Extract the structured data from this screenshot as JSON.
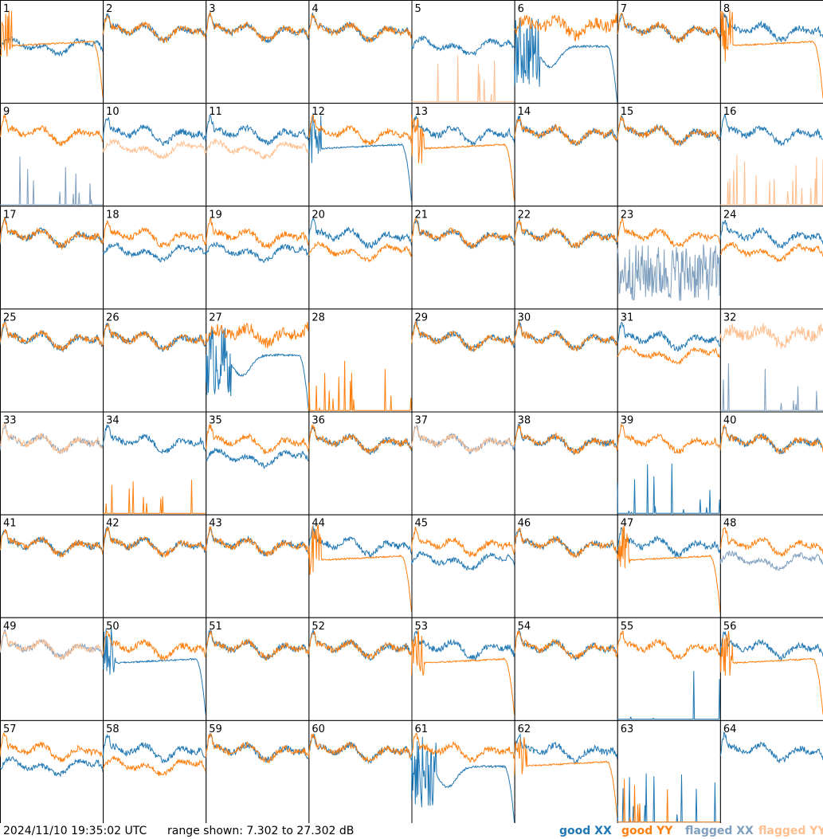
{
  "footer": {
    "timestamp": "2024/11/10 19:35:02 UTC",
    "range_text": "range shown: 7.302 to 27.302 dB"
  },
  "legend": [
    {
      "label": "good XX",
      "color": "#1f77b4"
    },
    {
      "label": "good YY",
      "color": "#ff7f0e"
    },
    {
      "label": "flagged XX",
      "color": "#7f9fbf"
    },
    {
      "label": "flagged YY",
      "color": "#ffbf8f"
    }
  ],
  "chart_data": {
    "type": "line",
    "layout": "small-multiples 8x8",
    "ylim": [
      7.302,
      27.302
    ],
    "yunit": "dB",
    "series_types": [
      "good XX",
      "good YY",
      "flagged XX",
      "flagged YY"
    ],
    "panels": [
      {
        "id": "1",
        "xx": "good",
        "yy": "good",
        "xx_shape": "bandpass_low",
        "yy_shape": "lowflat_drop"
      },
      {
        "id": "2",
        "xx": "good",
        "yy": "good",
        "xx_shape": "bandpass",
        "yy_shape": "bandpass"
      },
      {
        "id": "3",
        "xx": "good",
        "yy": "good",
        "xx_shape": "bandpass",
        "yy_shape": "bandpass"
      },
      {
        "id": "4",
        "xx": "good",
        "yy": "good",
        "xx_shape": "bandpass",
        "yy_shape": "bandpass"
      },
      {
        "id": "5",
        "xx": "good",
        "yy": "flagged",
        "xx_shape": "bandpass_low",
        "yy_shape": "spikes_low"
      },
      {
        "id": "6",
        "xx": "good",
        "yy": "good",
        "xx_shape": "deep_drop",
        "yy_shape": "noisy_high"
      },
      {
        "id": "7",
        "xx": "good",
        "yy": "good",
        "xx_shape": "bandpass",
        "yy_shape": "bandpass"
      },
      {
        "id": "8",
        "xx": "good",
        "yy": "good",
        "xx_shape": "bandpass",
        "yy_shape": "lowflat_drop"
      },
      {
        "id": "9",
        "xx": "flagged",
        "yy": "good",
        "xx_shape": "spikes_low",
        "yy_shape": "bandpass"
      },
      {
        "id": "10",
        "xx": "good",
        "yy": "flagged",
        "xx_shape": "bandpass",
        "yy_shape": "bandpass_low"
      },
      {
        "id": "11",
        "xx": "good",
        "yy": "flagged",
        "xx_shape": "bandpass",
        "yy_shape": "bandpass_low"
      },
      {
        "id": "12",
        "xx": "good",
        "yy": "good",
        "xx_shape": "lowflat_drop",
        "yy_shape": "bandpass"
      },
      {
        "id": "13",
        "xx": "good",
        "yy": "good",
        "xx_shape": "bandpass",
        "yy_shape": "lowflat_drop"
      },
      {
        "id": "14",
        "xx": "good",
        "yy": "good",
        "xx_shape": "bandpass",
        "yy_shape": "bandpass"
      },
      {
        "id": "15",
        "xx": "good",
        "yy": "good",
        "xx_shape": "bandpass",
        "yy_shape": "bandpass"
      },
      {
        "id": "16",
        "xx": "good",
        "yy": "flagged",
        "xx_shape": "bandpass",
        "yy_shape": "spikes_low"
      },
      {
        "id": "17",
        "xx": "good",
        "yy": "good",
        "xx_shape": "bandpass",
        "yy_shape": "bandpass"
      },
      {
        "id": "18",
        "xx": "good",
        "yy": "good",
        "xx_shape": "bandpass_low",
        "yy_shape": "bandpass"
      },
      {
        "id": "19",
        "xx": "good",
        "yy": "good",
        "xx_shape": "bandpass_low",
        "yy_shape": "bandpass"
      },
      {
        "id": "20",
        "xx": "good",
        "yy": "good",
        "xx_shape": "bandpass",
        "yy_shape": "bandpass_low"
      },
      {
        "id": "21",
        "xx": "good",
        "yy": "good",
        "xx_shape": "bandpass",
        "yy_shape": "bandpass"
      },
      {
        "id": "22",
        "xx": "good",
        "yy": "good",
        "xx_shape": "bandpass",
        "yy_shape": "bandpass"
      },
      {
        "id": "23",
        "xx": "flagged",
        "yy": "good",
        "xx_shape": "noisy_low",
        "yy_shape": "bandpass"
      },
      {
        "id": "24",
        "xx": "good",
        "yy": "good",
        "xx_shape": "bandpass",
        "yy_shape": "bandpass_low"
      },
      {
        "id": "25",
        "xx": "good",
        "yy": "good",
        "xx_shape": "bandpass",
        "yy_shape": "bandpass"
      },
      {
        "id": "26",
        "xx": "good",
        "yy": "good",
        "xx_shape": "bandpass",
        "yy_shape": "bandpass"
      },
      {
        "id": "27",
        "xx": "good",
        "yy": "good",
        "xx_shape": "deep_drop",
        "yy_shape": "noisy_high"
      },
      {
        "id": "28",
        "xx": "flagged",
        "yy": "good",
        "xx_shape": "none",
        "yy_shape": "spikes_low"
      },
      {
        "id": "29",
        "xx": "good",
        "yy": "good",
        "xx_shape": "bandpass",
        "yy_shape": "bandpass"
      },
      {
        "id": "30",
        "xx": "good",
        "yy": "good",
        "xx_shape": "bandpass",
        "yy_shape": "bandpass"
      },
      {
        "id": "31",
        "xx": "good",
        "yy": "good",
        "xx_shape": "bandpass",
        "yy_shape": "bandpass_low"
      },
      {
        "id": "32",
        "xx": "flagged",
        "yy": "flagged",
        "xx_shape": "spikes_low",
        "yy_shape": "noisy_high"
      },
      {
        "id": "33",
        "xx": "flagged",
        "yy": "flagged",
        "xx_shape": "bandpass",
        "yy_shape": "bandpass"
      },
      {
        "id": "34",
        "xx": "good",
        "yy": "good",
        "xx_shape": "bandpass",
        "yy_shape": "spikes_low"
      },
      {
        "id": "35",
        "xx": "good",
        "yy": "good",
        "xx_shape": "bandpass_low",
        "yy_shape": "bandpass"
      },
      {
        "id": "36",
        "xx": "good",
        "yy": "good",
        "xx_shape": "bandpass",
        "yy_shape": "bandpass"
      },
      {
        "id": "37",
        "xx": "flagged",
        "yy": "flagged",
        "xx_shape": "bandpass",
        "yy_shape": "bandpass"
      },
      {
        "id": "38",
        "xx": "good",
        "yy": "good",
        "xx_shape": "bandpass",
        "yy_shape": "bandpass"
      },
      {
        "id": "39",
        "xx": "good",
        "yy": "good",
        "xx_shape": "spikes_low",
        "yy_shape": "bandpass"
      },
      {
        "id": "40",
        "xx": "good",
        "yy": "good",
        "xx_shape": "bandpass",
        "yy_shape": "bandpass"
      },
      {
        "id": "41",
        "xx": "good",
        "yy": "good",
        "xx_shape": "bandpass",
        "yy_shape": "bandpass"
      },
      {
        "id": "42",
        "xx": "good",
        "yy": "good",
        "xx_shape": "bandpass",
        "yy_shape": "bandpass"
      },
      {
        "id": "43",
        "xx": "good",
        "yy": "good",
        "xx_shape": "bandpass",
        "yy_shape": "bandpass"
      },
      {
        "id": "44",
        "xx": "good",
        "yy": "good",
        "xx_shape": "bandpass",
        "yy_shape": "lowflat_drop"
      },
      {
        "id": "45",
        "xx": "good",
        "yy": "good",
        "xx_shape": "bandpass_low",
        "yy_shape": "bandpass"
      },
      {
        "id": "46",
        "xx": "good",
        "yy": "good",
        "xx_shape": "bandpass",
        "yy_shape": "bandpass"
      },
      {
        "id": "47",
        "xx": "good",
        "yy": "good",
        "xx_shape": "bandpass",
        "yy_shape": "lowflat_drop"
      },
      {
        "id": "48",
        "xx": "flagged",
        "yy": "good",
        "xx_shape": "bandpass_low",
        "yy_shape": "bandpass"
      },
      {
        "id": "49",
        "xx": "flagged",
        "yy": "flagged",
        "xx_shape": "bandpass",
        "yy_shape": "bandpass"
      },
      {
        "id": "50",
        "xx": "good",
        "yy": "good",
        "xx_shape": "lowflat_drop",
        "yy_shape": "bandpass"
      },
      {
        "id": "51",
        "xx": "good",
        "yy": "good",
        "xx_shape": "bandpass",
        "yy_shape": "bandpass"
      },
      {
        "id": "52",
        "xx": "good",
        "yy": "good",
        "xx_shape": "bandpass",
        "yy_shape": "bandpass"
      },
      {
        "id": "53",
        "xx": "good",
        "yy": "good",
        "xx_shape": "bandpass",
        "yy_shape": "lowflat_drop"
      },
      {
        "id": "54",
        "xx": "good",
        "yy": "good",
        "xx_shape": "bandpass",
        "yy_shape": "bandpass"
      },
      {
        "id": "55",
        "xx": "good",
        "yy": "good",
        "xx_shape": "spikes_low",
        "yy_shape": "bandpass"
      },
      {
        "id": "56",
        "xx": "good",
        "yy": "good",
        "xx_shape": "bandpass",
        "yy_shape": "lowflat_drop"
      },
      {
        "id": "57",
        "xx": "good",
        "yy": "good",
        "xx_shape": "bandpass_low",
        "yy_shape": "bandpass"
      },
      {
        "id": "58",
        "xx": "good",
        "yy": "good",
        "xx_shape": "bandpass",
        "yy_shape": "bandpass_low"
      },
      {
        "id": "59",
        "xx": "good",
        "yy": "good",
        "xx_shape": "bandpass",
        "yy_shape": "bandpass"
      },
      {
        "id": "60",
        "xx": "good",
        "yy": "good",
        "xx_shape": "bandpass",
        "yy_shape": "bandpass"
      },
      {
        "id": "61",
        "xx": "good",
        "yy": "good",
        "xx_shape": "deep_drop",
        "yy_shape": "bandpass"
      },
      {
        "id": "62",
        "xx": "good",
        "yy": "good",
        "xx_shape": "bandpass",
        "yy_shape": "lowflat_drop"
      },
      {
        "id": "63",
        "xx": "good",
        "yy": "good",
        "xx_shape": "spikes_low",
        "yy_shape": "spikes_low"
      },
      {
        "id": "64",
        "xx": "good",
        "yy": "none",
        "xx_shape": "bandpass",
        "yy_shape": "none"
      }
    ]
  }
}
